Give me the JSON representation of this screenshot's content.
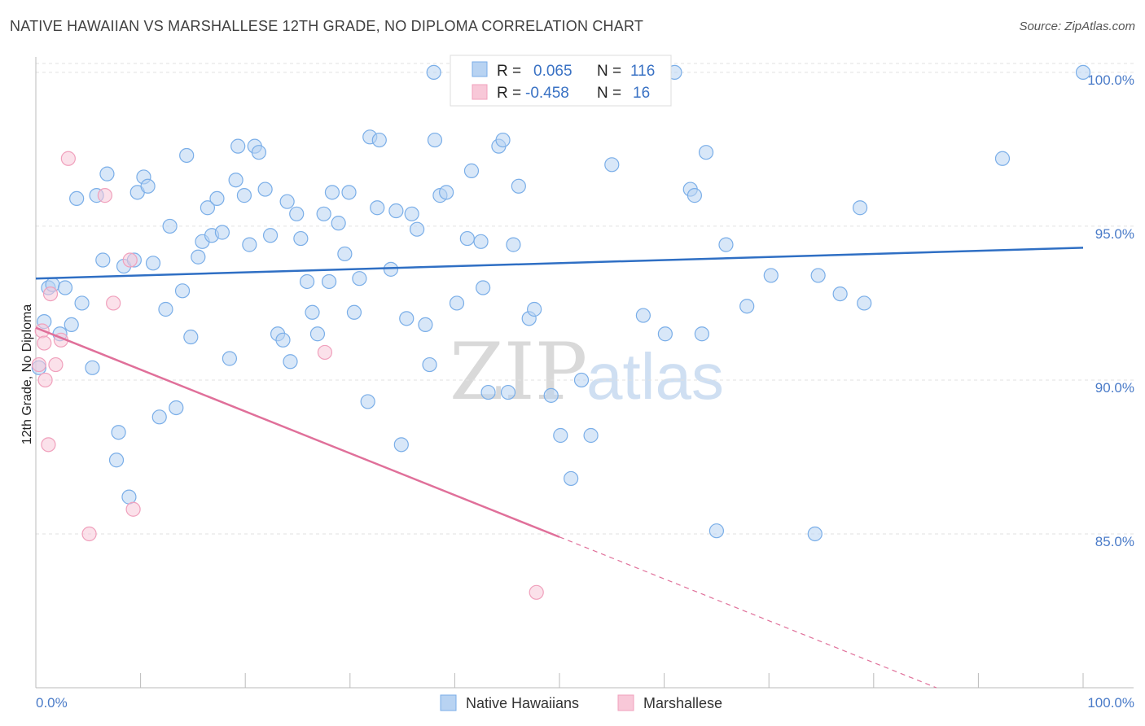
{
  "title": "NATIVE HAWAIIAN VS MARSHALLESE 12TH GRADE, NO DIPLOMA CORRELATION CHART",
  "source": "Source: ZipAtlas.com",
  "chart_data": {
    "type": "scatter",
    "ylabel": "12th Grade, No Diploma",
    "xlabel": "",
    "xlim": [
      0,
      100
    ],
    "ylim": [
      80.0,
      100.5
    ],
    "x_tick_labels": [
      "0.0%",
      "100.0%"
    ],
    "y_ticks": [
      85.0,
      90.0,
      95.0,
      100.0
    ],
    "y_tick_labels": [
      "85.0%",
      "90.0%",
      "95.0%",
      "100.0%"
    ],
    "grid": true,
    "watermark": {
      "zip": "ZIP",
      "atlas": "atlas"
    },
    "legend": {
      "series1": {
        "r_label": "R =",
        "r_value": "0.065",
        "n_label": "N =",
        "n_value": "116"
      },
      "series2": {
        "r_label": "R =",
        "r_value": "-0.458",
        "n_label": "N =",
        "n_value": "16"
      }
    },
    "series": [
      {
        "name": "Native Hawaiians",
        "color": "#7aaee8",
        "fill": "#b8d3f2",
        "trend": {
          "x0": 0,
          "y0": 93.3,
          "x1": 100,
          "y1": 94.3
        },
        "points": [
          [
            0.3,
            90.4
          ],
          [
            0.8,
            91.9
          ],
          [
            1.2,
            93.0
          ],
          [
            1.6,
            93.1
          ],
          [
            2.3,
            91.5
          ],
          [
            2.8,
            93.0
          ],
          [
            3.4,
            91.8
          ],
          [
            3.9,
            95.9
          ],
          [
            4.4,
            92.5
          ],
          [
            5.4,
            90.4
          ],
          [
            5.8,
            96.0
          ],
          [
            6.4,
            93.9
          ],
          [
            6.8,
            96.7
          ],
          [
            7.7,
            87.4
          ],
          [
            7.9,
            88.3
          ],
          [
            8.4,
            93.7
          ],
          [
            8.9,
            86.2
          ],
          [
            9.4,
            93.9
          ],
          [
            9.7,
            96.1
          ],
          [
            10.3,
            96.6
          ],
          [
            10.7,
            96.3
          ],
          [
            11.2,
            93.8
          ],
          [
            11.8,
            88.8
          ],
          [
            12.4,
            92.3
          ],
          [
            12.8,
            95.0
          ],
          [
            13.4,
            89.1
          ],
          [
            14.0,
            92.9
          ],
          [
            14.4,
            97.3
          ],
          [
            14.8,
            91.4
          ],
          [
            15.5,
            94.0
          ],
          [
            15.9,
            94.5
          ],
          [
            16.4,
            95.6
          ],
          [
            16.8,
            94.7
          ],
          [
            17.3,
            95.9
          ],
          [
            17.8,
            94.8
          ],
          [
            18.5,
            90.7
          ],
          [
            19.1,
            96.5
          ],
          [
            19.3,
            97.6
          ],
          [
            19.9,
            96.0
          ],
          [
            20.4,
            94.4
          ],
          [
            20.9,
            97.6
          ],
          [
            21.3,
            97.4
          ],
          [
            21.9,
            96.2
          ],
          [
            22.4,
            94.7
          ],
          [
            23.1,
            91.5
          ],
          [
            23.6,
            91.3
          ],
          [
            24.0,
            95.8
          ],
          [
            24.3,
            90.6
          ],
          [
            24.9,
            95.4
          ],
          [
            25.3,
            94.6
          ],
          [
            25.9,
            93.2
          ],
          [
            26.4,
            92.2
          ],
          [
            26.9,
            91.5
          ],
          [
            27.5,
            95.4
          ],
          [
            28.0,
            93.2
          ],
          [
            28.3,
            96.1
          ],
          [
            28.9,
            95.1
          ],
          [
            29.5,
            94.1
          ],
          [
            29.9,
            96.1
          ],
          [
            30.4,
            92.2
          ],
          [
            30.9,
            93.3
          ],
          [
            31.7,
            89.3
          ],
          [
            31.9,
            97.9
          ],
          [
            32.6,
            95.6
          ],
          [
            32.8,
            97.8
          ],
          [
            33.9,
            93.6
          ],
          [
            34.4,
            95.5
          ],
          [
            34.9,
            87.9
          ],
          [
            35.4,
            92.0
          ],
          [
            35.9,
            95.4
          ],
          [
            36.4,
            94.9
          ],
          [
            37.2,
            91.8
          ],
          [
            37.6,
            90.5
          ],
          [
            38.1,
            97.8
          ],
          [
            38.6,
            96.0
          ],
          [
            39.2,
            96.1
          ],
          [
            40.2,
            92.5
          ],
          [
            41.2,
            94.6
          ],
          [
            41.6,
            96.8
          ],
          [
            42.5,
            94.5
          ],
          [
            42.7,
            93.0
          ],
          [
            43.2,
            89.6
          ],
          [
            44.2,
            97.6
          ],
          [
            44.6,
            97.8
          ],
          [
            45.1,
            89.6
          ],
          [
            45.6,
            94.4
          ],
          [
            46.1,
            96.3
          ],
          [
            47.1,
            92.0
          ],
          [
            47.6,
            92.3
          ],
          [
            49.2,
            89.5
          ],
          [
            50.1,
            88.2
          ],
          [
            51.1,
            86.8
          ],
          [
            52.1,
            90.0
          ],
          [
            53.0,
            88.2
          ],
          [
            55.0,
            97.0
          ],
          [
            58.0,
            92.1
          ],
          [
            60.1,
            91.5
          ],
          [
            62.5,
            96.2
          ],
          [
            62.9,
            96.0
          ],
          [
            63.6,
            91.5
          ],
          [
            64.0,
            97.4
          ],
          [
            65.0,
            85.1
          ],
          [
            65.9,
            94.4
          ],
          [
            67.9,
            92.4
          ],
          [
            70.2,
            93.4
          ],
          [
            74.4,
            85.0
          ],
          [
            74.7,
            93.4
          ],
          [
            76.8,
            92.8
          ],
          [
            78.7,
            95.6
          ],
          [
            79.1,
            92.5
          ],
          [
            92.3,
            97.2
          ],
          [
            100.0,
            100.0
          ],
          [
            41.0,
            100.0
          ],
          [
            60.0,
            100.0
          ],
          [
            61.0,
            100.0
          ],
          [
            38.0,
            100.0
          ]
        ]
      },
      {
        "name": "Marshallese",
        "color": "#f0a0bc",
        "fill": "#f8c8d8",
        "trend": {
          "x0": 0,
          "y0": 91.7,
          "x1": 50.0,
          "y1": 84.9
        },
        "trend_dashed": {
          "x0": 50.0,
          "y0": 84.9,
          "x1": 86.0,
          "y1": 80.0
        },
        "points": [
          [
            0.3,
            90.5
          ],
          [
            0.6,
            91.6
          ],
          [
            0.8,
            91.2
          ],
          [
            0.9,
            90.0
          ],
          [
            1.2,
            87.9
          ],
          [
            1.4,
            92.8
          ],
          [
            1.9,
            90.5
          ],
          [
            2.4,
            91.3
          ],
          [
            3.1,
            97.2
          ],
          [
            5.1,
            85.0
          ],
          [
            6.6,
            96.0
          ],
          [
            7.4,
            92.5
          ],
          [
            9.0,
            93.9
          ],
          [
            9.3,
            85.8
          ],
          [
            27.6,
            90.9
          ],
          [
            47.8,
            83.1
          ]
        ]
      }
    ]
  }
}
